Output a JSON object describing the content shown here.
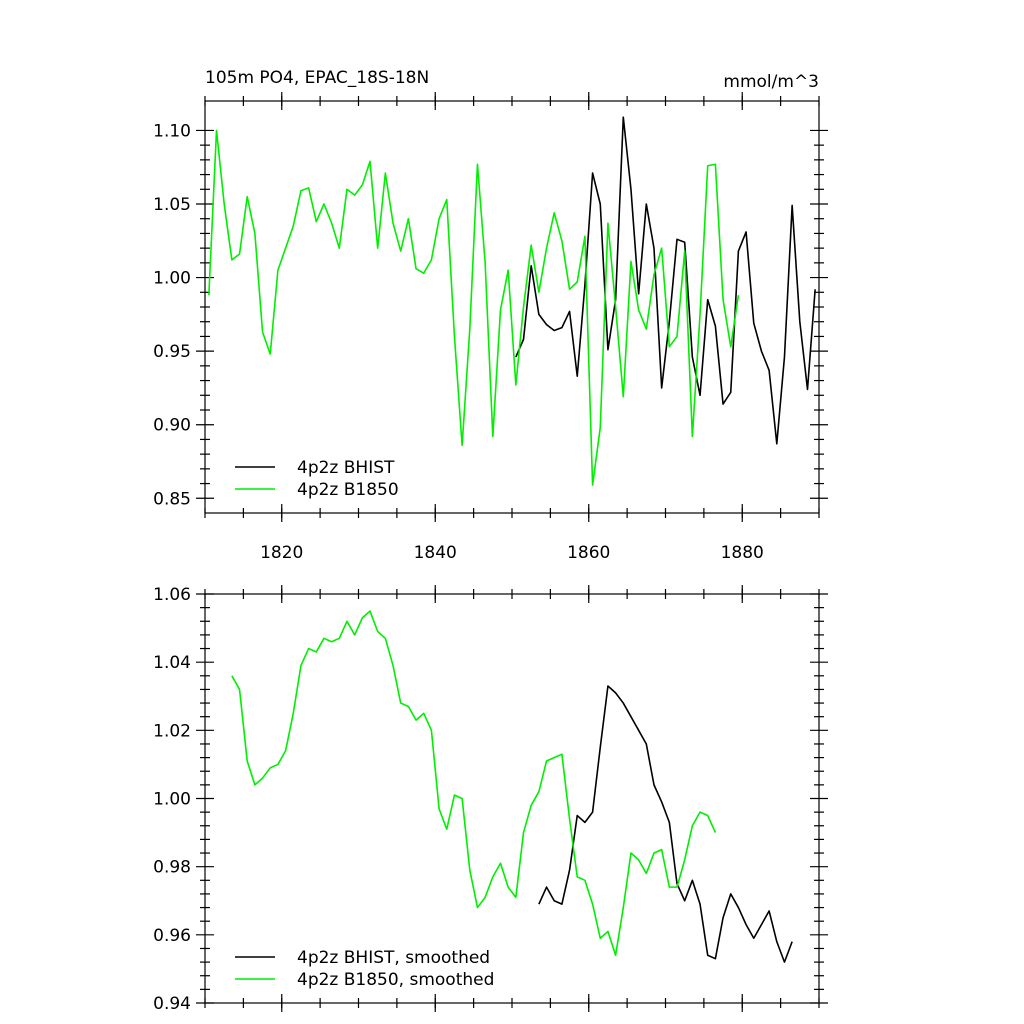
{
  "chart_data": [
    {
      "type": "line",
      "title": "105m PO4, EPAC_18S-18N",
      "units": "mmol/m^3",
      "xlim": [
        1810,
        1890
      ],
      "xticks": [
        1820,
        1840,
        1860,
        1880
      ],
      "xtick_labels": true,
      "ylim": [
        0.84,
        1.12
      ],
      "yticks": [
        0.85,
        {
          "value": 0.9,
          "label": "0.90"
        },
        0.95,
        {
          "value": 1.0,
          "label": "1.00"
        },
        1.05,
        {
          "value": 1.1,
          "label": "1.10"
        }
      ],
      "legend": "lower left",
      "series": [
        {
          "name": "4p2z BHIST",
          "color": "#000000",
          "x": [
            1850.5,
            1851.5,
            1852.5,
            1853.5,
            1854.5,
            1855.5,
            1856.5,
            1857.5,
            1858.5,
            1859.5,
            1860.5,
            1861.5,
            1862.5,
            1863.5,
            1864.5,
            1865.5,
            1866.5,
            1867.5,
            1868.5,
            1869.5,
            1870.5,
            1871.5,
            1872.5,
            1873.5,
            1874.5,
            1875.5,
            1876.5,
            1877.5,
            1878.5,
            1879.5,
            1880.5,
            1881.5,
            1882.5,
            1883.5,
            1884.5,
            1885.5,
            1886.5,
            1887.5,
            1888.5,
            1889.5
          ],
          "values": [
            0.946,
            0.958,
            1.008,
            0.975,
            0.968,
            0.964,
            0.966,
            0.977,
            0.933,
            0.995,
            1.071,
            1.05,
            0.951,
            0.985,
            1.109,
            1.06,
            0.989,
            1.05,
            1.02,
            0.925,
            0.97,
            1.026,
            1.024,
            0.946,
            0.92,
            0.985,
            0.967,
            0.914,
            0.922,
            1.018,
            1.031,
            0.969,
            0.95,
            0.937,
            0.887,
            0.946,
            1.049,
            0.97,
            0.924,
            0.992
          ]
        },
        {
          "name": "4p2z B1850",
          "color": "#00ee00",
          "x": [
            1810.5,
            1811.5,
            1812.5,
            1813.5,
            1814.5,
            1815.5,
            1816.5,
            1817.5,
            1818.5,
            1819.5,
            1820.5,
            1821.5,
            1822.5,
            1823.5,
            1824.5,
            1825.5,
            1826.5,
            1827.5,
            1828.5,
            1829.5,
            1830.5,
            1831.5,
            1832.5,
            1833.5,
            1834.5,
            1835.5,
            1836.5,
            1837.5,
            1838.5,
            1839.5,
            1840.5,
            1841.5,
            1842.5,
            1843.5,
            1844.5,
            1845.5,
            1846.5,
            1847.5,
            1848.5,
            1849.5,
            1850.5,
            1851.5,
            1852.5,
            1853.5,
            1854.5,
            1855.5,
            1856.5,
            1857.5,
            1858.5,
            1859.5,
            1860.5,
            1861.5,
            1862.5,
            1863.5,
            1864.5,
            1865.5,
            1866.5,
            1867.5,
            1868.5,
            1869.5,
            1870.5,
            1871.5,
            1872.5,
            1873.5,
            1874.5,
            1875.5,
            1876.5,
            1877.5,
            1878.5,
            1879.5
          ],
          "values": [
            0.988,
            1.1,
            1.05,
            1.012,
            1.016,
            1.055,
            1.03,
            0.963,
            0.948,
            1.005,
            1.02,
            1.035,
            1.059,
            1.061,
            1.038,
            1.05,
            1.037,
            1.02,
            1.06,
            1.056,
            1.063,
            1.079,
            1.02,
            1.071,
            1.037,
            1.018,
            1.04,
            1.006,
            1.003,
            1.012,
            1.04,
            1.053,
            0.96,
            0.886,
            0.965,
            1.077,
            1.01,
            0.892,
            0.978,
            1.005,
            0.927,
            0.98,
            1.022,
            0.99,
            1.02,
            1.044,
            1.025,
            0.992,
            0.997,
            1.028,
            0.859,
            0.898,
            1.037,
            0.98,
            0.919,
            1.011,
            0.978,
            0.965,
            1.002,
            1.02,
            0.953,
            0.96,
            1.018,
            0.892,
            0.975,
            1.076,
            1.077,
            0.985,
            0.953,
            0.988
          ]
        }
      ]
    },
    {
      "type": "line",
      "xlim": [
        1810,
        1890
      ],
      "xticks": [
        1820,
        1840,
        1860,
        1880
      ],
      "xtick_labels": false,
      "ylim": [
        0.94,
        1.06
      ],
      "yticks": [
        0.94,
        0.96,
        0.98,
        {
          "value": 1.0,
          "label": "1.00"
        },
        1.02,
        1.04,
        1.06
      ],
      "legend": "lower left",
      "series": [
        {
          "name": "4p2z BHIST, smoothed",
          "color": "#000000",
          "x": [
            1853.5,
            1854.5,
            1855.5,
            1856.5,
            1857.5,
            1858.5,
            1859.5,
            1860.5,
            1861.5,
            1862.5,
            1863.5,
            1864.5,
            1865.5,
            1866.5,
            1867.5,
            1868.5,
            1869.5,
            1870.5,
            1871.5,
            1872.5,
            1873.5,
            1874.5,
            1875.5,
            1876.5,
            1877.5,
            1878.5,
            1879.5,
            1880.5,
            1881.5,
            1882.5,
            1883.5,
            1884.5,
            1885.5,
            1886.5
          ],
          "values": [
            0.969,
            0.974,
            0.97,
            0.969,
            0.979,
            0.995,
            0.993,
            0.996,
            1.015,
            1.033,
            1.031,
            1.028,
            1.024,
            1.02,
            1.016,
            1.004,
            0.999,
            0.993,
            0.975,
            0.97,
            0.976,
            0.969,
            0.954,
            0.953,
            0.965,
            0.972,
            0.968,
            0.963,
            0.959,
            0.963,
            0.967,
            0.958,
            0.952,
            0.958
          ]
        },
        {
          "name": "4p2z B1850, smoothed",
          "color": "#00ee00",
          "x": [
            1813.5,
            1814.5,
            1815.5,
            1816.5,
            1817.5,
            1818.5,
            1819.5,
            1820.5,
            1821.5,
            1822.5,
            1823.5,
            1824.5,
            1825.5,
            1826.5,
            1827.5,
            1828.5,
            1829.5,
            1830.5,
            1831.5,
            1832.5,
            1833.5,
            1834.5,
            1835.5,
            1836.5,
            1837.5,
            1838.5,
            1839.5,
            1840.5,
            1841.5,
            1842.5,
            1843.5,
            1844.5,
            1845.5,
            1846.5,
            1847.5,
            1848.5,
            1849.5,
            1850.5,
            1851.5,
            1852.5,
            1853.5,
            1854.5,
            1855.5,
            1856.5,
            1857.5,
            1858.5,
            1859.5,
            1860.5,
            1861.5,
            1862.5,
            1863.5,
            1864.5,
            1865.5,
            1866.5,
            1867.5,
            1868.5,
            1869.5,
            1870.5,
            1871.5,
            1872.5,
            1873.5,
            1874.5,
            1875.5,
            1876.5
          ],
          "values": [
            1.036,
            1.032,
            1.011,
            1.004,
            1.006,
            1.009,
            1.01,
            1.014,
            1.025,
            1.039,
            1.044,
            1.043,
            1.047,
            1.046,
            1.047,
            1.052,
            1.048,
            1.053,
            1.055,
            1.049,
            1.047,
            1.039,
            1.028,
            1.027,
            1.023,
            1.025,
            1.02,
            0.997,
            0.991,
            1.001,
            1.0,
            0.979,
            0.968,
            0.971,
            0.977,
            0.981,
            0.974,
            0.971,
            0.99,
            0.998,
            1.002,
            1.011,
            1.012,
            1.013,
            0.994,
            0.977,
            0.976,
            0.969,
            0.959,
            0.961,
            0.954,
            0.968,
            0.984,
            0.982,
            0.978,
            0.984,
            0.985,
            0.974,
            0.974,
            0.982,
            0.992,
            0.996,
            0.995,
            0.99
          ]
        }
      ]
    }
  ]
}
